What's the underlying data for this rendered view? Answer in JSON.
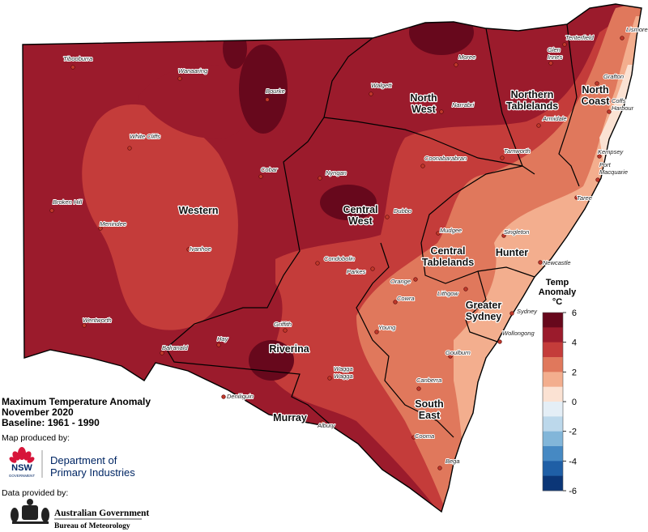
{
  "map": {
    "title": [
      "Maximum Temperature Anomaly",
      "November 2020",
      "Baseline: 1961 - 1990"
    ],
    "credits": {
      "map_by": "Map produced by:",
      "nsw": "NSW",
      "nsw_sub": "GOVERNMENT",
      "department": [
        "Department of",
        "Primary Industries"
      ],
      "data_by": "Data provided by:",
      "gov": "Australian Government",
      "bureau": "Bureau of Meteorology"
    },
    "legend": {
      "title": [
        "Temp",
        "Anomaly",
        "°C"
      ],
      "ticks": [
        6,
        4,
        2,
        0,
        -2,
        -4,
        -6
      ],
      "colors": [
        "#67081c",
        "#9b1b2c",
        "#c43c3a",
        "#e0785c",
        "#f3ae8e",
        "#fbe2d3",
        "#e4eef6",
        "#bcd8eb",
        "#82b6d9",
        "#4689c3",
        "#1f5fa6",
        "#0b3677"
      ]
    },
    "regions": [
      {
        "label": [
          "Western"
        ]
      },
      {
        "label": [
          "North",
          "West"
        ]
      },
      {
        "label": [
          "Northern",
          "Tablelands"
        ]
      },
      {
        "label": [
          "North",
          "Coast"
        ]
      },
      {
        "label": [
          "Central",
          "West"
        ]
      },
      {
        "label": [
          "Central",
          "Tablelands"
        ]
      },
      {
        "label": [
          "Hunter"
        ]
      },
      {
        "label": [
          "Greater",
          "Sydney"
        ]
      },
      {
        "label": [
          "Riverina"
        ]
      },
      {
        "label": [
          "Murray"
        ]
      },
      {
        "label": [
          "South",
          "East"
        ]
      }
    ],
    "towns": [
      {
        "name": "Tibooburra"
      },
      {
        "name": "Wanaaring"
      },
      {
        "name": "Bourke"
      },
      {
        "name": "White Cliffs"
      },
      {
        "name": "Cobar"
      },
      {
        "name": "Broken Hill"
      },
      {
        "name": "Menindee"
      },
      {
        "name": "Ivanhoe"
      },
      {
        "name": "Wentworth"
      },
      {
        "name": "Walgett"
      },
      {
        "name": "Moree"
      },
      {
        "name": "Narrabri"
      },
      {
        "name": "Nyngan"
      },
      {
        "name": "Coonabarabran"
      },
      {
        "name": "Tamworth"
      },
      {
        "name": "Dubbo"
      },
      {
        "name": "Tenterfield"
      },
      {
        "name": [
          "Glen",
          "Innes"
        ]
      },
      {
        "name": "Armidale"
      },
      {
        "name": "Lismore"
      },
      {
        "name": "Grafton"
      },
      {
        "name": [
          "Coffs",
          "Harbour"
        ]
      },
      {
        "name": "Kempsey"
      },
      {
        "name": [
          "Port",
          "Macquarie"
        ]
      },
      {
        "name": "Taree"
      },
      {
        "name": "Singleton"
      },
      {
        "name": "Newcastle"
      },
      {
        "name": "Mudgee"
      },
      {
        "name": "Condobolin"
      },
      {
        "name": "Parkes"
      },
      {
        "name": "Orange"
      },
      {
        "name": "Lithgow"
      },
      {
        "name": "Cowra"
      },
      {
        "name": "Sydney"
      },
      {
        "name": "Young"
      },
      {
        "name": "Wollongong"
      },
      {
        "name": "Griffith"
      },
      {
        "name": "Hay"
      },
      {
        "name": "Balranald"
      },
      {
        "name": [
          "Wagga",
          "Wagga"
        ]
      },
      {
        "name": "Goulburn"
      },
      {
        "name": "Canberra"
      },
      {
        "name": "Deniliquin"
      },
      {
        "name": "Albury"
      },
      {
        "name": "Cooma"
      },
      {
        "name": "Bega"
      }
    ]
  }
}
